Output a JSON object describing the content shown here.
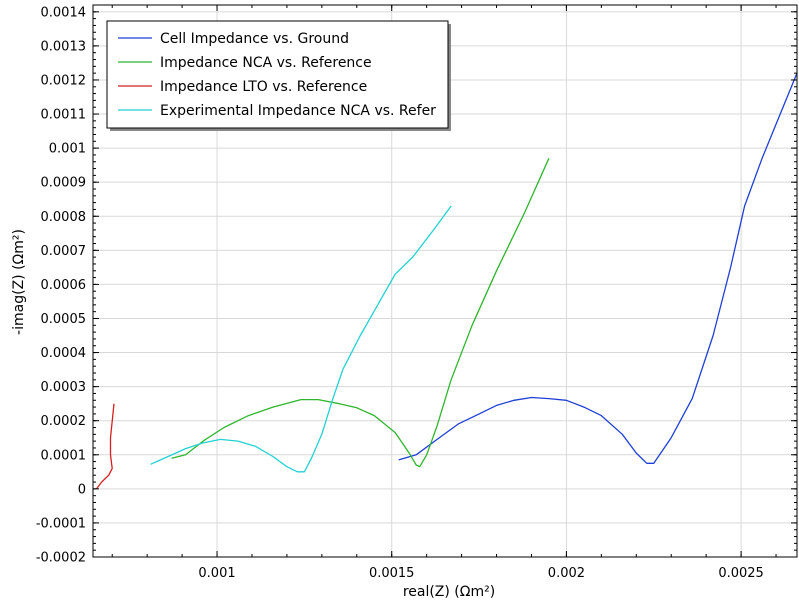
{
  "chart_data": {
    "type": "line",
    "xlabel": "real(Z) (Ωm²)",
    "ylabel": "-imag(Z) (Ωm²)",
    "xlim": [
      0.000645,
      0.00266
    ],
    "ylim": [
      -0.0002,
      0.00142
    ],
    "x_ticks": [
      0.001,
      0.0015,
      0.002,
      0.0025
    ],
    "x_tick_labels": [
      "0.001",
      "0.0015",
      "0.002",
      "0.0025"
    ],
    "y_ticks": [
      -0.0002,
      -0.0001,
      0,
      0.0001,
      0.0002,
      0.0003,
      0.0004,
      0.0005,
      0.0006,
      0.0007,
      0.0008,
      0.0009,
      0.001,
      0.0011,
      0.0012,
      0.0013,
      0.0014
    ],
    "y_tick_labels": [
      "-0.0002",
      "-0.0001",
      "0",
      "0.0001",
      "0.0002",
      "0.0003",
      "0.0004",
      "0.0005",
      "0.0006",
      "0.0007",
      "0.0008",
      "0.0009",
      "0.001",
      "0.0011",
      "0.0012",
      "0.0013",
      "0.0014"
    ],
    "grid": true,
    "legend_position": "top-left",
    "series": [
      {
        "name": "Cell Impedance vs. Ground",
        "color": "#1f3fd6",
        "x": [
          0.00152,
          0.00157,
          0.00163,
          0.00169,
          0.00175,
          0.0018,
          0.00185,
          0.0019,
          0.00195,
          0.002,
          0.00205,
          0.0021,
          0.00216,
          0.0022,
          0.00223,
          0.00225,
          0.0023,
          0.00236,
          0.00242,
          0.00247,
          0.00251,
          0.00256,
          0.00262,
          0.00266
        ],
        "y": [
          8.5e-05,
          0.0001,
          0.000145,
          0.00019,
          0.00022,
          0.000245,
          0.00026,
          0.000268,
          0.000265,
          0.00026,
          0.00024,
          0.000215,
          0.00016,
          0.000105,
          7.5e-05,
          7.5e-05,
          0.00015,
          0.000265,
          0.00045,
          0.00065,
          0.00083,
          0.00097,
          0.00112,
          0.00122
        ]
      },
      {
        "name": "Impedance NCA vs. Reference",
        "color": "#2db52d",
        "x": [
          0.00087,
          0.00091,
          0.00096,
          0.00102,
          0.00109,
          0.00116,
          0.00124,
          0.00129,
          0.00135,
          0.0014,
          0.00145,
          0.00151,
          0.00155,
          0.00157,
          0.00158,
          0.0016,
          0.00163,
          0.00167,
          0.00173,
          0.0018,
          0.00188,
          0.00195
        ],
        "y": [
          9e-05,
          0.0001,
          0.00014,
          0.00018,
          0.000215,
          0.00024,
          0.000262,
          0.000262,
          0.00025,
          0.000238,
          0.000215,
          0.000165,
          0.000105,
          7e-05,
          6.5e-05,
          0.0001,
          0.000185,
          0.00032,
          0.00048,
          0.00064,
          0.00081,
          0.00097
        ]
      },
      {
        "name": "Impedance LTO vs. Reference",
        "color": "#d42020",
        "x": [
          0.000655,
          0.00067,
          0.00069,
          0.0007,
          0.000695,
          0.000695,
          0.000705
        ],
        "y": [
          0.0,
          2e-05,
          4e-05,
          6e-05,
          0.0001,
          0.00015,
          0.00025
        ]
      },
      {
        "name": "Experimental Impedance NCA vs. Refer",
        "color": "#22d1d1",
        "x": [
          0.00081,
          0.00086,
          0.00091,
          0.00096,
          0.00101,
          0.00106,
          0.00111,
          0.00116,
          0.0012,
          0.00123,
          0.00125,
          0.00127,
          0.0013,
          0.00133,
          0.00136,
          0.00141,
          0.00146,
          0.00151,
          0.00156,
          0.00162,
          0.00167
        ],
        "y": [
          7.2e-05,
          9.5e-05,
          0.000118,
          0.000135,
          0.000145,
          0.00014,
          0.000125,
          9.5e-05,
          6.5e-05,
          5e-05,
          5e-05,
          9e-05,
          0.00016,
          0.00026,
          0.00035,
          0.00045,
          0.00054,
          0.00063,
          0.00068,
          0.00076,
          0.00083
        ]
      }
    ]
  }
}
